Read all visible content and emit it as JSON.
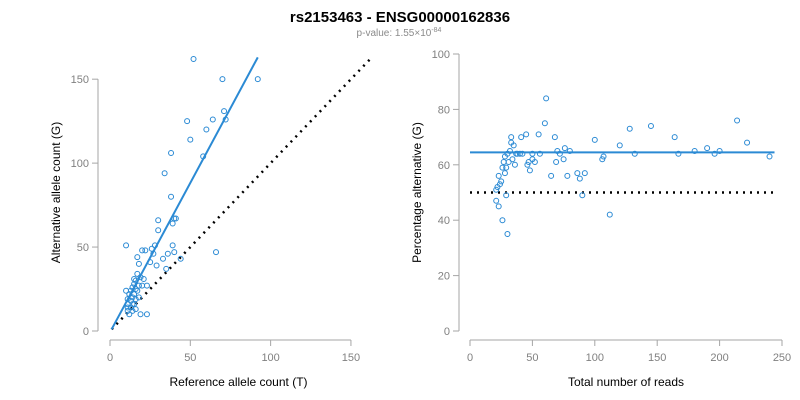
{
  "title": "rs2153463 - ENSG00000162836",
  "subtitle": {
    "prefix": "p-value: 1.55×10",
    "exponent": "-84"
  },
  "colors": {
    "points": "#2b8ad4",
    "fit_line": "#2b8ad4",
    "reference_line": "#000000",
    "axis": "#a6a6a6"
  },
  "chart_data": [
    {
      "type": "scatter",
      "title": "",
      "xlabel": "Reference allele count (T)",
      "ylabel": "Alternative allele count (G)",
      "xlim": [
        0,
        160
      ],
      "ylim": [
        0,
        165
      ],
      "xticks": [
        0,
        50,
        100,
        150
      ],
      "yticks": [
        0,
        50,
        100,
        150
      ],
      "points": [
        [
          10,
          51
        ],
        [
          10,
          24
        ],
        [
          11,
          19
        ],
        [
          11,
          16
        ],
        [
          11,
          14
        ],
        [
          11,
          12
        ],
        [
          12,
          22
        ],
        [
          12,
          10
        ],
        [
          13,
          24
        ],
        [
          13,
          18
        ],
        [
          13,
          14
        ],
        [
          14,
          26
        ],
        [
          14,
          20
        ],
        [
          14,
          16
        ],
        [
          14,
          12
        ],
        [
          15,
          31
        ],
        [
          15,
          28
        ],
        [
          15,
          22
        ],
        [
          15,
          16
        ],
        [
          16,
          30
        ],
        [
          16,
          25
        ],
        [
          16,
          19
        ],
        [
          16,
          13
        ],
        [
          17,
          44
        ],
        [
          17,
          34
        ],
        [
          17,
          24
        ],
        [
          18,
          40
        ],
        [
          18,
          27
        ],
        [
          18,
          20
        ],
        [
          19,
          32
        ],
        [
          19,
          10
        ],
        [
          20,
          48
        ],
        [
          20,
          27
        ],
        [
          21,
          31
        ],
        [
          22,
          48
        ],
        [
          23,
          10
        ],
        [
          23,
          27
        ],
        [
          25,
          41
        ],
        [
          26,
          49
        ],
        [
          27,
          46
        ],
        [
          28,
          51
        ],
        [
          29,
          39
        ],
        [
          30,
          60
        ],
        [
          30,
          66
        ],
        [
          33,
          43
        ],
        [
          34,
          94
        ],
        [
          35,
          37
        ],
        [
          36,
          46
        ],
        [
          38,
          80
        ],
        [
          38,
          106
        ],
        [
          39,
          64
        ],
        [
          39,
          51
        ],
        [
          40,
          67
        ],
        [
          40,
          47
        ],
        [
          41,
          67
        ],
        [
          44,
          43
        ],
        [
          48,
          125
        ],
        [
          50,
          114
        ],
        [
          52,
          162
        ],
        [
          58,
          104
        ],
        [
          60,
          120
        ],
        [
          64,
          126
        ],
        [
          66,
          47
        ],
        [
          70,
          150
        ],
        [
          71,
          131
        ],
        [
          72,
          126
        ],
        [
          92,
          150
        ]
      ],
      "fit_line": {
        "x": [
          1,
          92
        ],
        "y": [
          1,
          163
        ]
      },
      "reference_line": {
        "x": [
          1,
          162
        ],
        "y": [
          1,
          162
        ]
      },
      "grid": false
    },
    {
      "type": "scatter",
      "title": "",
      "xlabel": "Total number of reads",
      "ylabel": "Percentage alternative (G)",
      "xlim": [
        0,
        250
      ],
      "ylim": [
        0,
        100
      ],
      "xticks": [
        0,
        50,
        100,
        150,
        200,
        250
      ],
      "yticks": [
        0,
        20,
        40,
        60,
        80,
        100
      ],
      "points": [
        [
          21,
          51
        ],
        [
          21,
          47
        ],
        [
          22,
          52
        ],
        [
          23,
          45
        ],
        [
          23,
          56
        ],
        [
          24,
          53
        ],
        [
          25,
          54
        ],
        [
          26,
          59
        ],
        [
          26,
          40
        ],
        [
          27,
          61
        ],
        [
          28,
          57
        ],
        [
          28,
          63
        ],
        [
          29,
          49
        ],
        [
          29,
          59
        ],
        [
          30,
          35
        ],
        [
          30,
          64
        ],
        [
          31,
          61
        ],
        [
          32,
          65
        ],
        [
          33,
          68
        ],
        [
          33,
          70
        ],
        [
          34,
          62
        ],
        [
          35,
          67
        ],
        [
          36,
          60
        ],
        [
          37,
          64
        ],
        [
          38,
          64
        ],
        [
          40,
          64
        ],
        [
          41,
          70
        ],
        [
          42,
          64
        ],
        [
          45,
          71
        ],
        [
          46,
          60
        ],
        [
          47,
          61
        ],
        [
          48,
          58
        ],
        [
          50,
          64
        ],
        [
          50,
          62
        ],
        [
          52,
          61
        ],
        [
          55,
          71
        ],
        [
          56,
          64
        ],
        [
          60,
          75
        ],
        [
          61,
          84
        ],
        [
          65,
          56
        ],
        [
          68,
          70
        ],
        [
          69,
          61
        ],
        [
          70,
          65
        ],
        [
          72,
          64
        ],
        [
          75,
          62
        ],
        [
          76,
          66
        ],
        [
          78,
          56
        ],
        [
          80,
          65
        ],
        [
          86,
          57
        ],
        [
          88,
          55
        ],
        [
          90,
          49
        ],
        [
          92,
          57
        ],
        [
          100,
          69
        ],
        [
          106,
          62
        ],
        [
          107,
          63
        ],
        [
          112,
          42
        ],
        [
          120,
          67
        ],
        [
          128,
          73
        ],
        [
          132,
          64
        ],
        [
          145,
          74
        ],
        [
          164,
          70
        ],
        [
          167,
          64
        ],
        [
          180,
          65
        ],
        [
          190,
          66
        ],
        [
          196,
          64
        ],
        [
          200,
          65
        ],
        [
          214,
          76
        ],
        [
          222,
          68
        ],
        [
          240,
          63
        ]
      ],
      "fit_line": {
        "x": [
          0,
          244
        ],
        "y": [
          64.5,
          64.5
        ]
      },
      "reference_line": {
        "x": [
          0,
          244
        ],
        "y": [
          50,
          50
        ]
      },
      "grid": false
    }
  ]
}
